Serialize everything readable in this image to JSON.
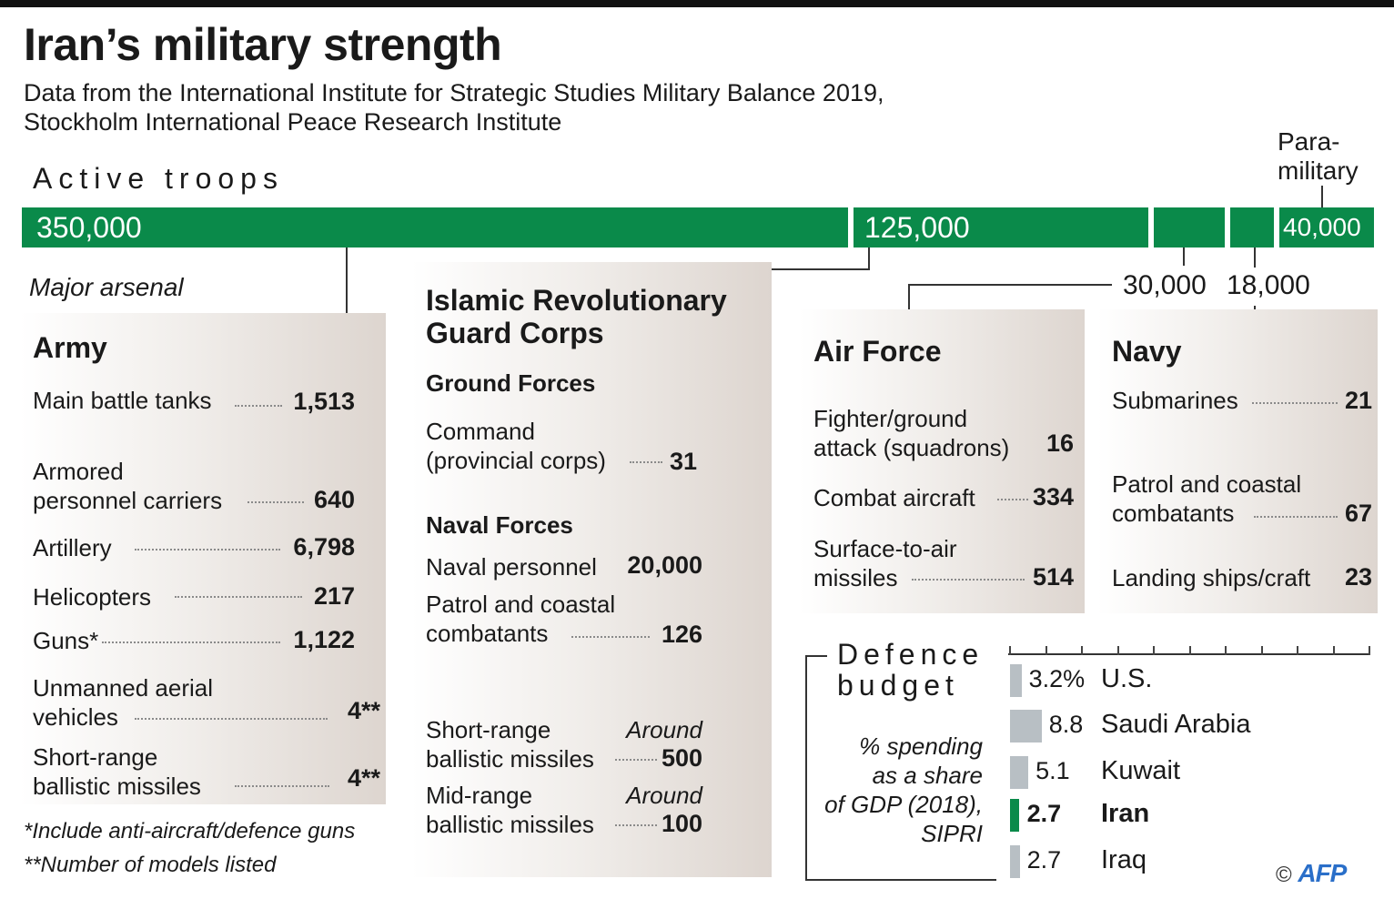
{
  "title": "Iran’s military strength",
  "subtitle_lines": [
    "Data from the International Institute for Strategic Studies Military Balance 2019,",
    "Stockholm International Peace Research Institute"
  ],
  "troops": {
    "heading": "Active troops",
    "paramilitary_label_lines": [
      "Para-",
      "military"
    ],
    "segments": [
      {
        "name": "Army",
        "value": 350000,
        "label": "350,000"
      },
      {
        "name": "Islamic Revolutionary Guard Corps",
        "value": 125000,
        "label": "125,000"
      },
      {
        "name": "Air Force",
        "value": 30000,
        "label": "30,000"
      },
      {
        "name": "Navy",
        "value": 18000,
        "label": "18,000"
      },
      {
        "name": "Paramilitary",
        "value": 40000,
        "label": "40,000"
      }
    ]
  },
  "arsenal_heading": "Major arsenal",
  "army": {
    "title": "Army",
    "items": [
      {
        "label_lines": [
          "Main battle tanks"
        ],
        "value": "1,513"
      },
      {
        "label_lines": [
          "Armored",
          "personnel carriers"
        ],
        "value": "640"
      },
      {
        "label_lines": [
          "Artillery"
        ],
        "value": "6,798"
      },
      {
        "label_lines": [
          "Helicopters"
        ],
        "value": "217"
      },
      {
        "label_lines": [
          "Guns*"
        ],
        "value": "1,122"
      },
      {
        "label_lines": [
          "Unmanned aerial",
          "vehicles"
        ],
        "value": "4**"
      },
      {
        "label_lines": [
          "Short-range",
          "ballistic missiles"
        ],
        "value": "4**"
      }
    ]
  },
  "irgc": {
    "title_lines": [
      "Islamic Revolutionary",
      "Guard Corps"
    ],
    "ground_heading": "Ground Forces",
    "ground_items": [
      {
        "label_lines": [
          "Command",
          "(provincial corps)"
        ],
        "value": "31"
      }
    ],
    "naval_heading": "Naval Forces",
    "naval_items": [
      {
        "label_lines": [
          "Naval personnel"
        ],
        "value": "20,000"
      },
      {
        "label_lines": [
          "Patrol and coastal",
          "combatants"
        ],
        "value": "126"
      }
    ],
    "missile_items": [
      {
        "label_lines": [
          "Short-range",
          "ballistic missiles"
        ],
        "qualifier": "Around",
        "value": "500"
      },
      {
        "label_lines": [
          "Mid-range",
          "ballistic missiles"
        ],
        "qualifier": "Around",
        "value": "100"
      }
    ]
  },
  "air_force": {
    "title": "Air Force",
    "items": [
      {
        "label_lines": [
          "Fighter/ground",
          "attack (squadrons)"
        ],
        "value": "16"
      },
      {
        "label_lines": [
          "Combat aircraft"
        ],
        "value": "334"
      },
      {
        "label_lines": [
          "Surface-to-air",
          "missiles"
        ],
        "value": "514"
      }
    ]
  },
  "navy": {
    "title": "Navy",
    "items": [
      {
        "label_lines": [
          "Submarines"
        ],
        "value": "21"
      },
      {
        "label_lines": [
          "Patrol and coastal",
          "combatants"
        ],
        "value": "67"
      },
      {
        "label_lines": [
          "Landing ships/craft"
        ],
        "value": "23"
      }
    ]
  },
  "footnotes": [
    "*Include anti-aircraft/defence guns",
    "**Number of models listed"
  ],
  "budget": {
    "heading_lines": [
      "Defence",
      "budget"
    ],
    "note_lines": [
      "% spending",
      "as a share",
      "of GDP (2018),",
      "SIPRI"
    ],
    "highlight_color": "#0a8a4a",
    "bar_color": "#b8bfc4"
  },
  "chart_data": {
    "type": "bar",
    "orientation": "horizontal",
    "categories": [
      "U.S.",
      "Saudi Arabia",
      "Kuwait",
      "Iran",
      "Iraq"
    ],
    "values": [
      3.2,
      8.8,
      5.1,
      2.7,
      2.7
    ],
    "value_labels": [
      "3.2%",
      "8.8",
      "5.1",
      "2.7",
      "2.7"
    ],
    "highlight": "Iran",
    "title": "Defence budget",
    "xlabel": "% spending as a share of GDP (2018), SIPRI",
    "grid": false
  },
  "credit": "© AFP"
}
